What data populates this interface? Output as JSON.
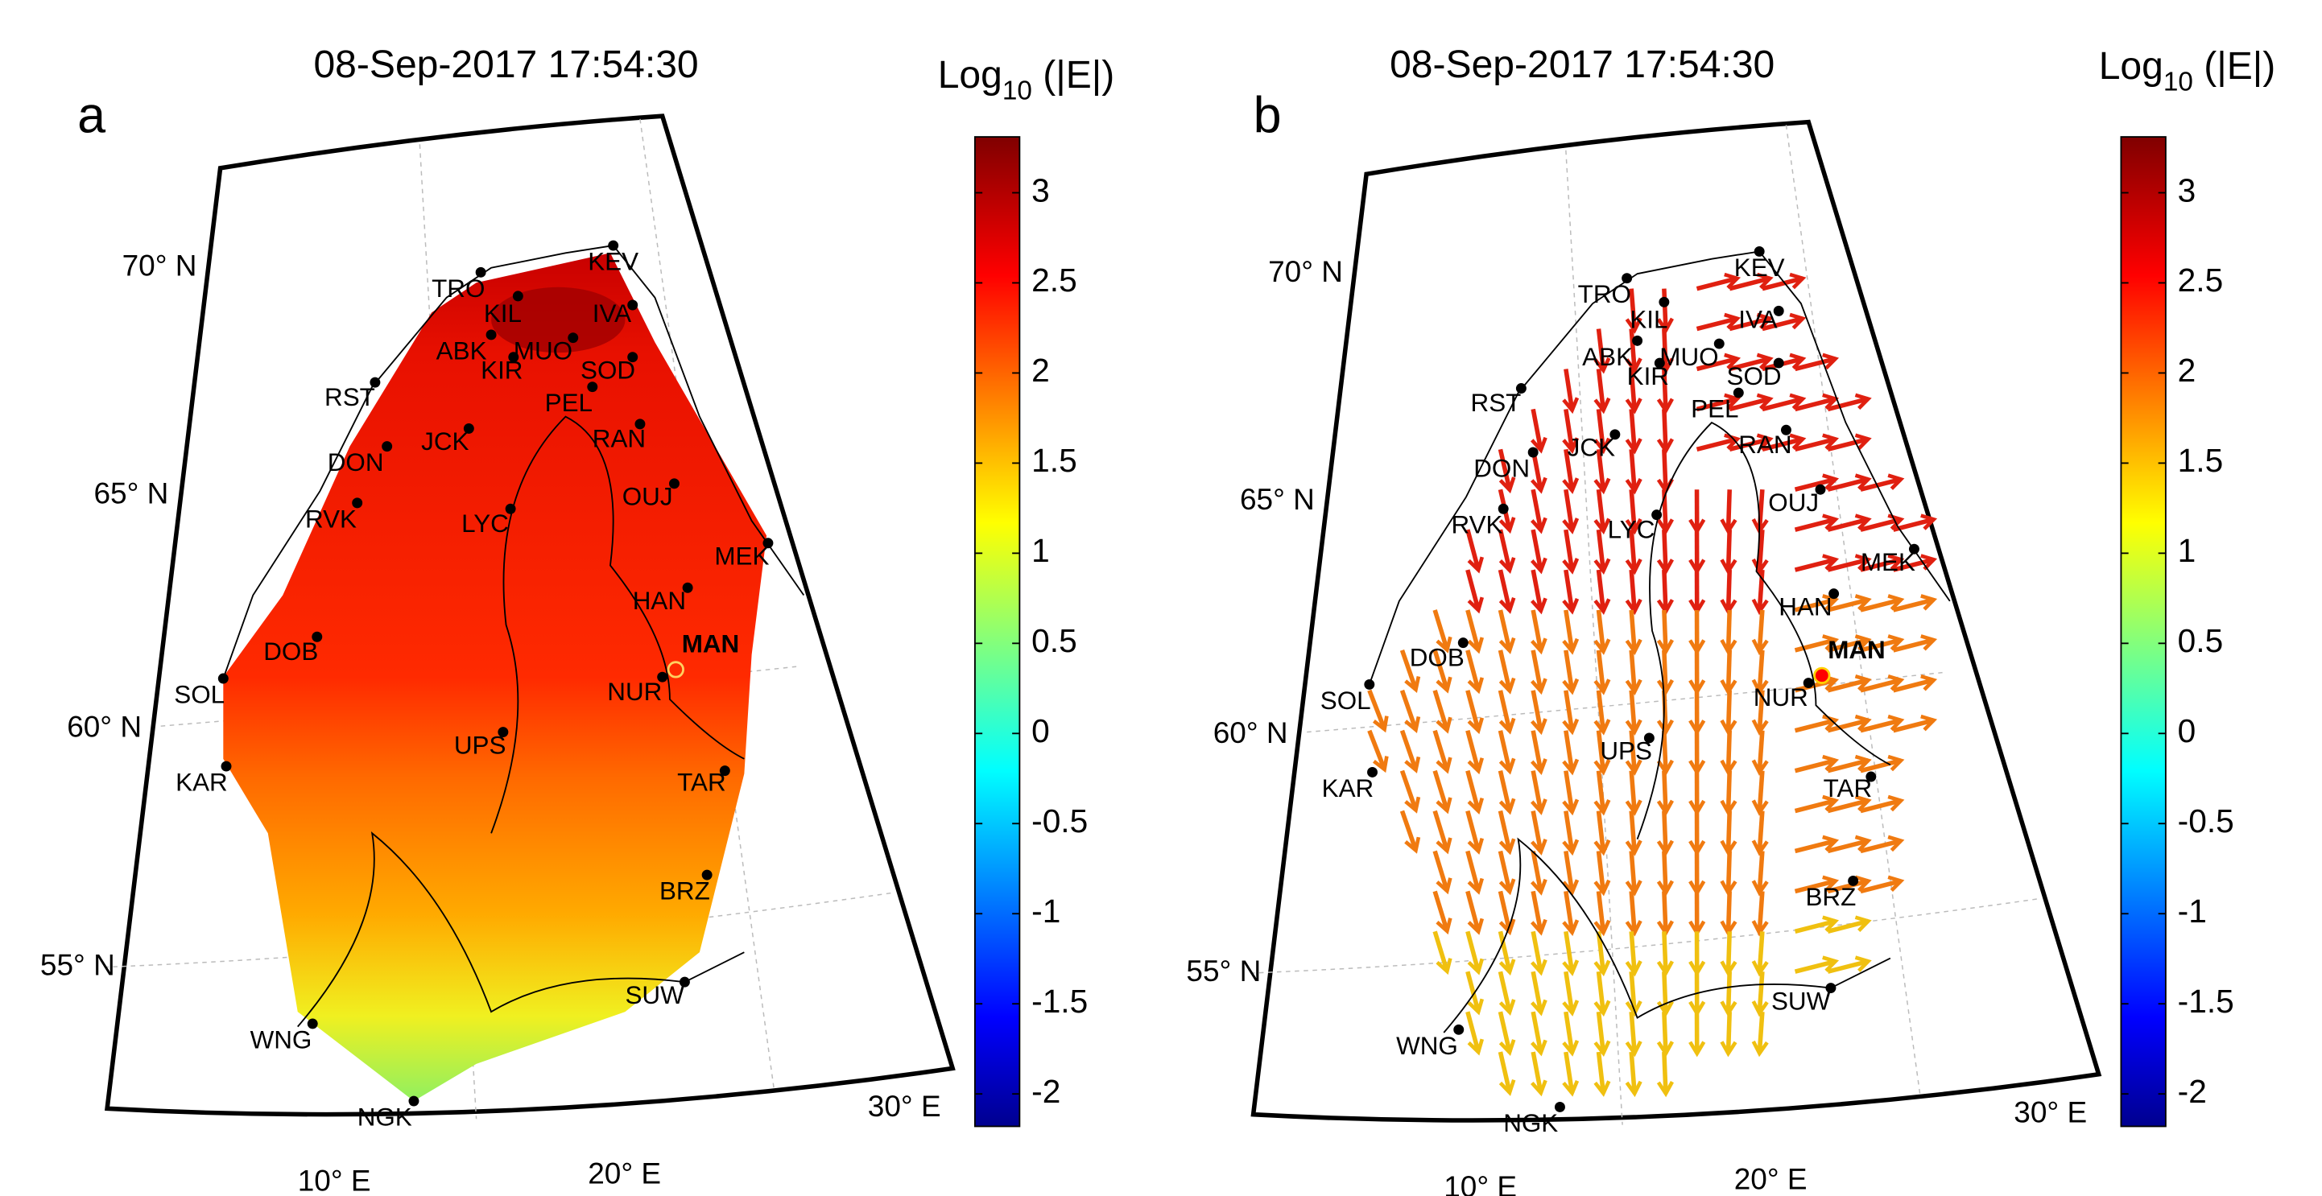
{
  "panels": [
    {
      "label": "a",
      "title": "08-Sep-2017 17:54:30",
      "colorbar": {
        "title": {
          "base": "Log",
          "subscript": "10",
          "rest": " (|E|)"
        },
        "lim": [
          -2.18,
          3.31
        ],
        "ticks": [
          -2,
          -1.5,
          -1,
          -0.5,
          0,
          0.5,
          1,
          1.5,
          2,
          2.5,
          3
        ]
      },
      "lat_labels": [
        "70° N",
        "65° N",
        "60° N",
        "55° N"
      ],
      "lon_labels": [
        "10° E",
        "20° E",
        "30° E"
      ],
      "stations": [
        "KEV",
        "TRO",
        "KIL",
        "IVA",
        "ABK",
        "MUO",
        "KIR",
        "SOD",
        "RST",
        "PEL",
        "JCK",
        "RAN",
        "DON",
        "OUJ",
        "RVK",
        "LYC",
        "MEK",
        "HAN",
        "DOB",
        "MAN",
        "NUR",
        "SOL",
        "UPS",
        "KAR",
        "TAR",
        "BRZ",
        "SUW",
        "WNG",
        "NGK"
      ]
    },
    {
      "label": "b",
      "title": "08-Sep-2017 17:54:30",
      "colorbar": {
        "title": {
          "base": "Log",
          "subscript": "10",
          "rest": " (|E|)"
        },
        "lim": [
          -2.18,
          3.31
        ],
        "ticks": [
          -2,
          -1.5,
          -1,
          -0.5,
          0,
          0.5,
          1,
          1.5,
          2,
          2.5,
          3
        ]
      },
      "lat_labels": [
        "70° N",
        "65° N",
        "60° N",
        "55° N"
      ],
      "lon_labels": [
        "10° E",
        "20° E",
        "30° E"
      ],
      "stations": [
        "KEV",
        "TRO",
        "KIL",
        "IVA",
        "ABK",
        "MUO",
        "KIR",
        "SOD",
        "RST",
        "PEL",
        "JCK",
        "RAN",
        "DON",
        "OUJ",
        "RVK",
        "LYC",
        "MEK",
        "HAN",
        "DOB",
        "MAN",
        "NUR",
        "SOL",
        "UPS",
        "KAR",
        "TAR",
        "BRZ",
        "SUW",
        "WNG",
        "NGK"
      ]
    }
  ]
}
